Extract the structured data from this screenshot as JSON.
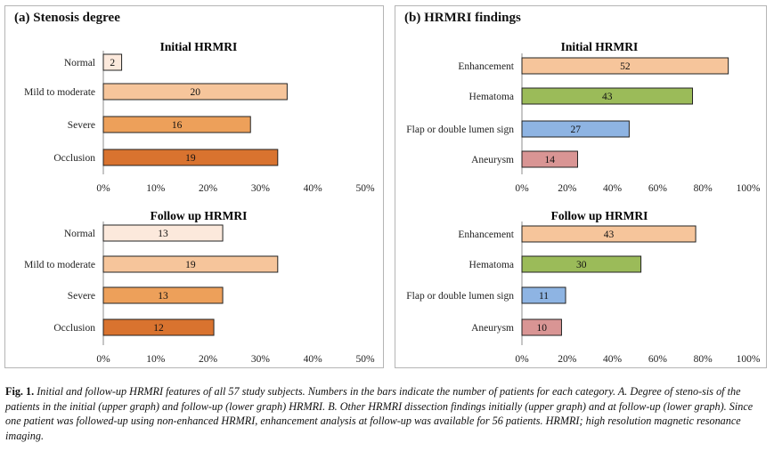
{
  "panels": {
    "a_title": "(a) Stenosis degree",
    "b_title": "(b) HRMRI findings"
  },
  "caption": {
    "lead": "Fig. 1.",
    "text": "Initial and follow-up HRMRI features of all 57 study subjects. Numbers in the bars indicate the number of patients for each category. A. Degree of steno-sis of the patients in the initial (upper graph) and follow-up (lower graph) HRMRI. B. Other HRMRI dissection findings initially (upper graph) and at follow-up (lower graph). Since one patient was followed-up using non-enhanced HRMRI, enhancement analysis at follow-up was available for 56 patients. HRMRI; high resolution magnetic resonance imaging."
  },
  "chart_data": [
    {
      "id": "a-initial",
      "type": "bar",
      "orientation": "horizontal",
      "title": "Initial HRMRI",
      "categories": [
        "Normal",
        "Mild to moderate",
        "Severe",
        "Occlusion"
      ],
      "values": [
        3.5,
        35.1,
        28.1,
        33.3
      ],
      "labels": [
        "2",
        "20",
        "16",
        "19"
      ],
      "colors": [
        "#fce9dc",
        "#f6c59b",
        "#eda05a",
        "#d9732f"
      ],
      "xlim": [
        0,
        50
      ],
      "ticks": [
        "0%",
        "10%",
        "20%",
        "30%",
        "40%",
        "50%"
      ],
      "tick_values": [
        0,
        10,
        20,
        30,
        40,
        50
      ]
    },
    {
      "id": "a-follow",
      "type": "bar",
      "orientation": "horizontal",
      "title": "Follow up HRMRI",
      "categories": [
        "Normal",
        "Mild to moderate",
        "Severe",
        "Occlusion"
      ],
      "values": [
        22.8,
        33.3,
        22.8,
        21.1
      ],
      "labels": [
        "13",
        "19",
        "13",
        "12"
      ],
      "colors": [
        "#fce9dc",
        "#f6c59b",
        "#eda05a",
        "#d9732f"
      ],
      "xlim": [
        0,
        50
      ],
      "ticks": [
        "0%",
        "10%",
        "20%",
        "30%",
        "40%",
        "50%"
      ],
      "tick_values": [
        0,
        10,
        20,
        30,
        40,
        50
      ]
    },
    {
      "id": "b-initial",
      "type": "bar",
      "orientation": "horizontal",
      "title": "Initial HRMRI",
      "categories": [
        "Enhancement",
        "Hematoma",
        "Flap or double lumen sign",
        "Aneurysm"
      ],
      "values": [
        91.2,
        75.4,
        47.4,
        24.6
      ],
      "labels": [
        "52",
        "43",
        "27",
        "14"
      ],
      "colors": [
        "#f6c59b",
        "#9bbb59",
        "#8eb4e3",
        "#d99594"
      ],
      "xlim": [
        0,
        100
      ],
      "ticks": [
        "0%",
        "20%",
        "40%",
        "60%",
        "80%",
        "100%"
      ],
      "tick_values": [
        0,
        20,
        40,
        60,
        80,
        100
      ]
    },
    {
      "id": "b-follow",
      "type": "bar",
      "orientation": "horizontal",
      "title": "Follow up HRMRI",
      "categories": [
        "Enhancement",
        "Hematoma",
        "Flap or double lumen sign",
        "Aneurysm"
      ],
      "values": [
        76.8,
        52.6,
        19.3,
        17.5
      ],
      "labels": [
        "43",
        "30",
        "11",
        "10"
      ],
      "colors": [
        "#f6c59b",
        "#9bbb59",
        "#8eb4e3",
        "#d99594"
      ],
      "xlim": [
        0,
        100
      ],
      "ticks": [
        "0%",
        "20%",
        "40%",
        "60%",
        "80%",
        "100%"
      ],
      "tick_values": [
        0,
        20,
        40,
        60,
        80,
        100
      ]
    }
  ]
}
